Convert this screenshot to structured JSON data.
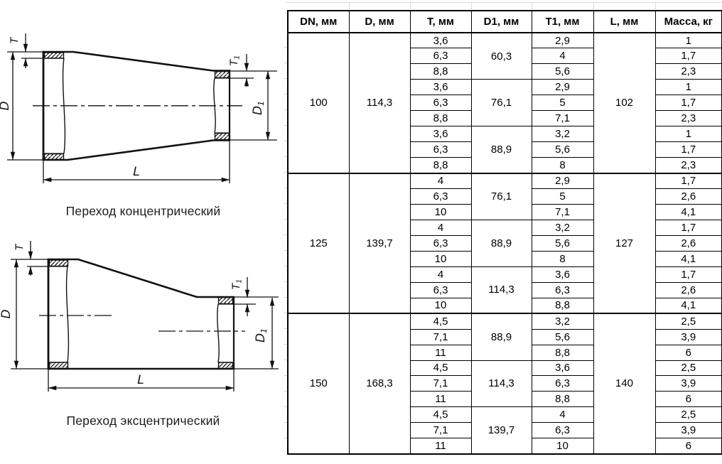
{
  "colors": {
    "line": "#111111",
    "table_border": "#000000",
    "gridline_artifact": "#dadada"
  },
  "diagrams": {
    "concentric": {
      "caption": "Переход концентрический"
    },
    "eccentric": {
      "caption": "Переход эксцентрический"
    },
    "dim_labels": {
      "t": "T",
      "t1": {
        "base": "T",
        "sub": "1"
      },
      "d": "D",
      "d1": {
        "base": "D",
        "sub": "1"
      },
      "l": "L"
    }
  },
  "table": {
    "headers": [
      "DN, мм",
      "D, мм",
      "T, мм",
      "D1, мм",
      "T1, мм",
      "L, мм",
      "Масса, кг"
    ],
    "groups": [
      {
        "dn": "100",
        "d": "114,3",
        "l": "102",
        "subgroups": [
          {
            "d1": "60,3",
            "rows": [
              {
                "t": "3,6",
                "t1": "2,9",
                "mass": "1"
              },
              {
                "t": "6,3",
                "t1": "4",
                "mass": "1,7"
              },
              {
                "t": "8,8",
                "t1": "5,6",
                "mass": "2,3"
              }
            ]
          },
          {
            "d1": "76,1",
            "rows": [
              {
                "t": "3,6",
                "t1": "2,9",
                "mass": "1"
              },
              {
                "t": "6,3",
                "t1": "5",
                "mass": "1,7"
              },
              {
                "t": "8,8",
                "t1": "7,1",
                "mass": "2,3"
              }
            ]
          },
          {
            "d1": "88,9",
            "rows": [
              {
                "t": "3,6",
                "t1": "3,2",
                "mass": "1"
              },
              {
                "t": "6,3",
                "t1": "5,6",
                "mass": "1,7"
              },
              {
                "t": "8,8",
                "t1": "8",
                "mass": "2,3"
              }
            ]
          }
        ]
      },
      {
        "dn": "125",
        "d": "139,7",
        "l": "127",
        "subgroups": [
          {
            "d1": "76,1",
            "rows": [
              {
                "t": "4",
                "t1": "2,9",
                "mass": "1,7"
              },
              {
                "t": "6,3",
                "t1": "5",
                "mass": "2,6"
              },
              {
                "t": "10",
                "t1": "7,1",
                "mass": "4,1"
              }
            ]
          },
          {
            "d1": "88,9",
            "rows": [
              {
                "t": "4",
                "t1": "3,2",
                "mass": "1,7"
              },
              {
                "t": "6,3",
                "t1": "5,6",
                "mass": "2,6"
              },
              {
                "t": "10",
                "t1": "8",
                "mass": "4,1"
              }
            ]
          },
          {
            "d1": "114,3",
            "rows": [
              {
                "t": "4",
                "t1": "3,6",
                "mass": "1,7"
              },
              {
                "t": "6,3",
                "t1": "6,3",
                "mass": "2,6"
              },
              {
                "t": "10",
                "t1": "8,8",
                "mass": "4,1"
              }
            ]
          }
        ]
      },
      {
        "dn": "150",
        "d": "168,3",
        "l": "140",
        "subgroups": [
          {
            "d1": "88,9",
            "rows": [
              {
                "t": "4,5",
                "t1": "3,2",
                "mass": "2,5"
              },
              {
                "t": "7,1",
                "t1": "5,6",
                "mass": "3,9"
              },
              {
                "t": "11",
                "t1": "8,8",
                "mass": "6"
              }
            ]
          },
          {
            "d1": "114,3",
            "rows": [
              {
                "t": "4,5",
                "t1": "3,6",
                "mass": "2,5"
              },
              {
                "t": "7,1",
                "t1": "6,3",
                "mass": "3,9"
              },
              {
                "t": "11",
                "t1": "8,8",
                "mass": "6"
              }
            ]
          },
          {
            "d1": "139,7",
            "rows": [
              {
                "t": "4,5",
                "t1": "4",
                "mass": "2,5"
              },
              {
                "t": "7,1",
                "t1": "6,3",
                "mass": "3,9"
              },
              {
                "t": "11",
                "t1": "10",
                "mass": "6"
              }
            ]
          }
        ]
      }
    ]
  }
}
